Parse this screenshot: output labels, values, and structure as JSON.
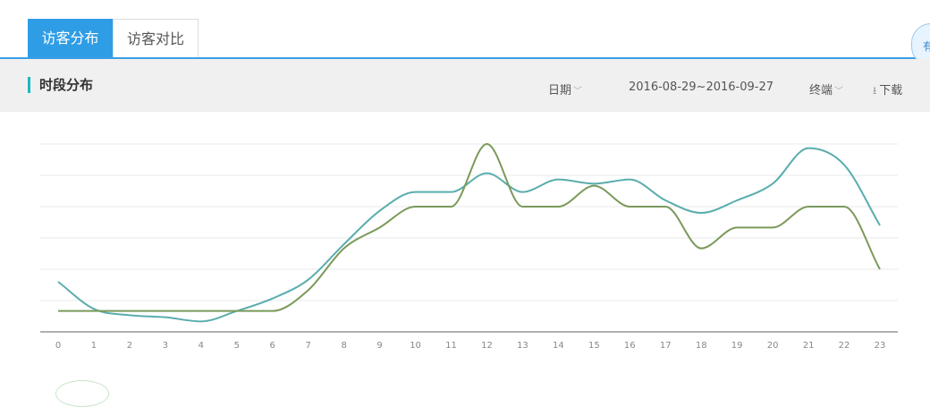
{
  "tabs": [
    {
      "label": "访客分布",
      "active": true
    },
    {
      "label": "访客对比",
      "active": false
    }
  ],
  "side_bubble_text": "有",
  "section": {
    "title": "时段分布"
  },
  "controls": {
    "date_label": "日期",
    "date_range": "2016-08-29~2016-09-27",
    "terminal_label": "终端",
    "download_label": "下载"
  },
  "colors": {
    "accent": "#2f9de6",
    "series_1": "#5aadad",
    "series_2": "#7a9a5a"
  },
  "chart_data": {
    "type": "line",
    "smooth": true,
    "x": [
      0,
      1,
      2,
      3,
      4,
      5,
      6,
      7,
      8,
      9,
      10,
      11,
      12,
      13,
      14,
      15,
      16,
      17,
      18,
      19,
      20,
      21,
      22,
      23
    ],
    "series": [
      {
        "values": [
          2.4,
          1.1,
          0.8,
          0.7,
          0.5,
          1.0,
          1.6,
          2.5,
          4.2,
          5.8,
          6.7,
          6.7,
          7.6,
          6.7,
          7.3,
          7.1,
          7.3,
          6.3,
          5.7,
          6.3,
          7.1,
          8.8,
          8.0,
          5.1
        ]
      },
      {
        "values": [
          1.0,
          1.0,
          1.0,
          1.0,
          1.0,
          1.0,
          1.0,
          2.0,
          4.0,
          5.0,
          6.0,
          6.0,
          9.0,
          6.0,
          6.0,
          7.0,
          6.0,
          6.0,
          4.0,
          5.0,
          5.0,
          6.0,
          6.0,
          3.0
        ]
      }
    ],
    "ylim": [
      0,
      9
    ],
    "grid": true,
    "y_tick_labels_visible": false
  }
}
